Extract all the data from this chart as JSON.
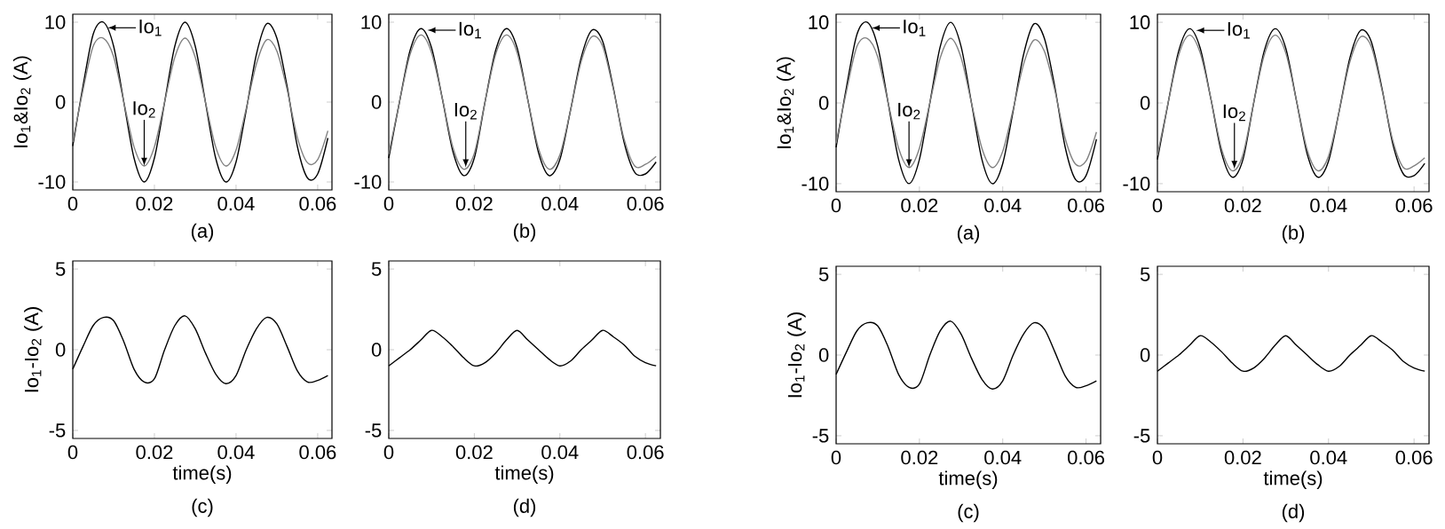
{
  "chart_data": [
    {
      "type": "line",
      "x": [
        0,
        0.0025,
        0.005,
        0.0075,
        0.01,
        0.0125,
        0.015,
        0.0175,
        0.02,
        0.0225,
        0.025,
        0.0275,
        0.03,
        0.0325,
        0.035,
        0.0375,
        0.04,
        0.0425,
        0.045,
        0.0475,
        0.05,
        0.0525,
        0.055,
        0.0575,
        0.06,
        0.0625
      ],
      "xlim": [
        0,
        0.0635
      ],
      "ylim": [
        -11,
        11
      ],
      "xticks": [
        0,
        0.02,
        0.04,
        0.06
      ],
      "yticks": [
        -10,
        0,
        10
      ],
      "ylabel": "Io$_{1}$&Io$_{2}$ (A)",
      "series": [
        {
          "color": "#000000",
          "values": [
            -5.5,
            2,
            8.5,
            10,
            7,
            0,
            -7,
            -10,
            -7,
            0,
            7,
            10,
            7,
            0,
            -7,
            -10,
            -7.5,
            -1,
            6,
            9.8,
            8,
            2,
            -5.5,
            -9.5,
            -9,
            -4.5
          ]
        },
        {
          "color": "#808080",
          "values": [
            -5,
            1.5,
            7,
            8,
            5.7,
            0,
            -5.6,
            -8,
            -5.6,
            0,
            5.6,
            8,
            5.6,
            0,
            -5.6,
            -8,
            -6,
            -0.8,
            4.8,
            7.8,
            6.4,
            1.6,
            -4.4,
            -7.6,
            -7.2,
            -3.6
          ]
        }
      ],
      "annotations": [
        {
          "text": "Io$_{1}$",
          "x": 0.0085,
          "y": 9.3
        },
        {
          "text": "Io$_{2}$",
          "x": 0.0175,
          "y": -8
        },
        "(a)"
      ]
    },
    {
      "type": "line",
      "x": [
        0,
        0.0025,
        0.005,
        0.0075,
        0.01,
        0.0125,
        0.015,
        0.0175,
        0.02,
        0.0225,
        0.025,
        0.0275,
        0.03,
        0.0325,
        0.035,
        0.0375,
        0.04,
        0.0425,
        0.045,
        0.0475,
        0.05,
        0.0525,
        0.055,
        0.0575,
        0.06,
        0.0625
      ],
      "xlim": [
        0,
        0.0635
      ],
      "ylim": [
        -11,
        11
      ],
      "xticks": [
        0,
        0.02,
        0.04,
        0.06
      ],
      "yticks": [
        -10,
        0,
        10
      ],
      "series": [
        {
          "color": "#000000",
          "values": [
            -7,
            0,
            6.5,
            9.2,
            6.8,
            0.5,
            -6.2,
            -9.2,
            -7,
            0,
            6.5,
            9.2,
            6.8,
            0.3,
            -6.3,
            -9.2,
            -7.2,
            -1,
            5.6,
            9,
            7.6,
            1.8,
            -5,
            -8.8,
            -9,
            -7.5
          ]
        },
        {
          "color": "#808080",
          "values": [
            -6.5,
            0,
            6,
            8.4,
            6.2,
            0.5,
            -5.7,
            -8.4,
            -6.4,
            0,
            6,
            8.4,
            6.2,
            0.3,
            -5.8,
            -8.4,
            -6.6,
            -1,
            5.1,
            8.2,
            7,
            1.6,
            -4.6,
            -8,
            -7.8,
            -6.8
          ]
        }
      ],
      "annotations": [
        {
          "text": "Io$_{1}$",
          "x": 0.009,
          "y": 9
        },
        {
          "text": "Io$_{2}$",
          "x": 0.018,
          "y": -8.2
        },
        "(b)"
      ]
    },
    {
      "type": "line",
      "x": [
        0,
        0.0025,
        0.005,
        0.0075,
        0.01,
        0.0125,
        0.015,
        0.0175,
        0.02,
        0.0225,
        0.025,
        0.0275,
        0.03,
        0.0325,
        0.035,
        0.0375,
        0.04,
        0.0425,
        0.045,
        0.0475,
        0.05,
        0.0525,
        0.055,
        0.0575,
        0.06,
        0.0625
      ],
      "xlim": [
        0,
        0.0635
      ],
      "ylim": [
        -5.5,
        5.5
      ],
      "xticks": [
        0,
        0.02,
        0.04,
        0.06
      ],
      "yticks": [
        -5,
        0,
        5
      ],
      "ylabel": "Io$_{1}$-Io$_{2}$ (A)",
      "xlabel": "time(s)",
      "series": [
        {
          "color": "#000000",
          "values": [
            -1.2,
            0.2,
            1.5,
            2,
            1.8,
            0.5,
            -1.2,
            -2,
            -1.8,
            0,
            1.5,
            2.1,
            1.3,
            -0.2,
            -1.5,
            -2.1,
            -1.6,
            0,
            1.3,
            2,
            1.6,
            0.2,
            -1.3,
            -2,
            -1.9,
            -1.6
          ]
        }
      ],
      "annotations": [
        "(c)"
      ]
    },
    {
      "type": "line",
      "x": [
        0,
        0.0025,
        0.005,
        0.0075,
        0.01,
        0.0125,
        0.015,
        0.0175,
        0.02,
        0.0225,
        0.025,
        0.0275,
        0.03,
        0.0325,
        0.035,
        0.0375,
        0.04,
        0.0425,
        0.045,
        0.0475,
        0.05,
        0.0525,
        0.055,
        0.0575,
        0.06,
        0.0625
      ],
      "xlim": [
        0,
        0.0635
      ],
      "ylim": [
        -5.5,
        5.5
      ],
      "xticks": [
        0,
        0.02,
        0.04,
        0.06
      ],
      "yticks": [
        -5,
        0,
        5
      ],
      "xlabel": "time(s)",
      "series": [
        {
          "color": "#000000",
          "values": [
            -1,
            -0.5,
            0,
            0.6,
            1.2,
            0.8,
            0.2,
            -0.5,
            -1,
            -0.8,
            -0.2,
            0.6,
            1.2,
            0.6,
            0,
            -0.6,
            -1,
            -0.7,
            0,
            0.6,
            1.2,
            0.8,
            0.3,
            -0.4,
            -0.8,
            -1
          ]
        }
      ],
      "annotations": [
        "(d)"
      ]
    },
    {
      "type": "line",
      "x": [
        0,
        0.0025,
        0.005,
        0.0075,
        0.01,
        0.0125,
        0.015,
        0.0175,
        0.02,
        0.0225,
        0.025,
        0.0275,
        0.03,
        0.0325,
        0.035,
        0.0375,
        0.04,
        0.0425,
        0.045,
        0.0475,
        0.05,
        0.0525,
        0.055,
        0.0575,
        0.06,
        0.0625
      ],
      "xlim": [
        0,
        0.0635
      ],
      "ylim": [
        -11,
        11
      ],
      "xticks": [
        0,
        0.02,
        0.04,
        0.06
      ],
      "yticks": [
        -10,
        0,
        10
      ],
      "ylabel": "Io$_{1}$&Io$_{2}$ (A)",
      "series": [
        {
          "color": "#000000",
          "values": [
            -5.5,
            2,
            8.5,
            10,
            7,
            0,
            -7,
            -10,
            -7,
            0,
            7,
            10,
            7,
            0,
            -7,
            -10,
            -7.5,
            -1,
            6,
            9.8,
            8,
            2,
            -5.5,
            -9.5,
            -9,
            -4.5
          ]
        },
        {
          "color": "#808080",
          "values": [
            -5,
            1.5,
            7,
            8,
            5.7,
            0,
            -5.6,
            -8,
            -5.6,
            0,
            5.6,
            8,
            5.6,
            0,
            -5.6,
            -8,
            -6,
            -0.8,
            4.8,
            7.8,
            6.4,
            1.6,
            -4.4,
            -7.6,
            -7.2,
            -3.6
          ]
        }
      ],
      "annotations": [
        {
          "text": "Io$_{1}$",
          "x": 0.0085,
          "y": 9.3
        },
        {
          "text": "Io$_{2}$",
          "x": 0.0175,
          "y": -8
        },
        "(a)"
      ]
    },
    {
      "type": "line",
      "x": [
        0,
        0.0025,
        0.005,
        0.0075,
        0.01,
        0.0125,
        0.015,
        0.0175,
        0.02,
        0.0225,
        0.025,
        0.0275,
        0.03,
        0.0325,
        0.035,
        0.0375,
        0.04,
        0.0425,
        0.045,
        0.0475,
        0.05,
        0.0525,
        0.055,
        0.0575,
        0.06,
        0.0625
      ],
      "xlim": [
        0,
        0.0635
      ],
      "ylim": [
        -11,
        11
      ],
      "xticks": [
        0,
        0.02,
        0.04,
        0.06
      ],
      "yticks": [
        -10,
        0,
        10
      ],
      "series": [
        {
          "color": "#000000",
          "values": [
            -7,
            0,
            6.5,
            9.2,
            6.8,
            0.5,
            -6.2,
            -9.2,
            -7,
            0,
            6.5,
            9.2,
            6.8,
            0.3,
            -6.3,
            -9.2,
            -7.2,
            -1,
            5.6,
            9,
            7.6,
            1.8,
            -5,
            -8.8,
            -9,
            -7.5
          ]
        },
        {
          "color": "#808080",
          "values": [
            -6.5,
            0,
            6,
            8.4,
            6.2,
            0.5,
            -5.7,
            -8.4,
            -6.4,
            0,
            6,
            8.4,
            6.2,
            0.3,
            -5.8,
            -8.4,
            -6.6,
            -1,
            5.1,
            8.2,
            7,
            1.6,
            -4.6,
            -8,
            -7.8,
            -6.8
          ]
        }
      ],
      "annotations": [
        {
          "text": "Io$_{1}$",
          "x": 0.009,
          "y": 9
        },
        {
          "text": "Io$_{2}$",
          "x": 0.018,
          "y": -8.2
        },
        "(b)"
      ]
    },
    {
      "type": "line",
      "x": [
        0,
        0.0025,
        0.005,
        0.0075,
        0.01,
        0.0125,
        0.015,
        0.0175,
        0.02,
        0.0225,
        0.025,
        0.0275,
        0.03,
        0.0325,
        0.035,
        0.0375,
        0.04,
        0.0425,
        0.045,
        0.0475,
        0.05,
        0.0525,
        0.055,
        0.0575,
        0.06,
        0.0625
      ],
      "xlim": [
        0,
        0.0635
      ],
      "ylim": [
        -5.5,
        5.5
      ],
      "xticks": [
        0,
        0.02,
        0.04,
        0.06
      ],
      "yticks": [
        -5,
        0,
        5
      ],
      "ylabel": "Io$_{1}$-Io$_{2}$ (A)",
      "xlabel": "time(s)",
      "series": [
        {
          "color": "#000000",
          "values": [
            -1.2,
            0.2,
            1.5,
            2,
            1.8,
            0.5,
            -1.2,
            -2,
            -1.8,
            0,
            1.5,
            2.1,
            1.3,
            -0.2,
            -1.5,
            -2.1,
            -1.6,
            0,
            1.3,
            2,
            1.6,
            0.2,
            -1.3,
            -2,
            -1.9,
            -1.6
          ]
        }
      ],
      "annotations": [
        "(c)"
      ]
    },
    {
      "type": "line",
      "x": [
        0,
        0.0025,
        0.005,
        0.0075,
        0.01,
        0.0125,
        0.015,
        0.0175,
        0.02,
        0.0225,
        0.025,
        0.0275,
        0.03,
        0.0325,
        0.035,
        0.0375,
        0.04,
        0.0425,
        0.045,
        0.0475,
        0.05,
        0.0525,
        0.055,
        0.0575,
        0.06,
        0.0625
      ],
      "xlim": [
        0,
        0.0635
      ],
      "ylim": [
        -5.5,
        5.5
      ],
      "xticks": [
        0,
        0.02,
        0.04,
        0.06
      ],
      "yticks": [
        -5,
        0,
        5
      ],
      "xlabel": "time(s)",
      "series": [
        {
          "color": "#000000",
          "values": [
            -1,
            -0.5,
            0,
            0.6,
            1.2,
            0.8,
            0.2,
            -0.5,
            -1,
            -0.8,
            -0.2,
            0.6,
            1.2,
            0.6,
            0,
            -0.6,
            -1,
            -0.7,
            0,
            0.6,
            1.2,
            0.8,
            0.3,
            -0.4,
            -0.8,
            -1
          ]
        }
      ],
      "annotations": [
        "(d)"
      ]
    }
  ]
}
